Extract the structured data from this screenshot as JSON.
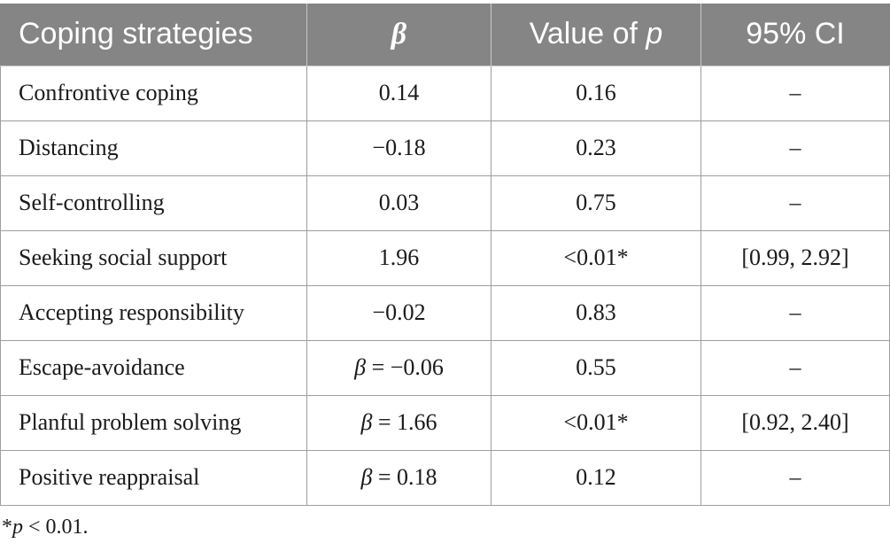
{
  "table": {
    "header": {
      "strategy": "Coping strategies",
      "beta": "β",
      "p_value_prefix": "Value of ",
      "p_value_symbol": "p",
      "ci": "95% CI"
    },
    "rows": [
      {
        "strategy": "Confrontive coping",
        "beta_prefix": "",
        "beta": "0.14",
        "p": "0.16",
        "ci": "–"
      },
      {
        "strategy": "Distancing",
        "beta_prefix": "",
        "beta": "−0.18",
        "p": "0.23",
        "ci": "–"
      },
      {
        "strategy": "Self-controlling",
        "beta_prefix": "",
        "beta": "0.03",
        "p": "0.75",
        "ci": "–"
      },
      {
        "strategy": "Seeking social support",
        "beta_prefix": "",
        "beta": "1.96",
        "p": "<0.01*",
        "ci": "[0.99, 2.92]"
      },
      {
        "strategy": "Accepting responsibility",
        "beta_prefix": "",
        "beta": "−0.02",
        "p": "0.83",
        "ci": "–"
      },
      {
        "strategy": "Escape-avoidance",
        "beta_prefix": "β",
        "beta": " = −0.06",
        "p": "0.55",
        "ci": "–"
      },
      {
        "strategy": "Planful problem solving",
        "beta_prefix": "β",
        "beta": " = 1.66",
        "p": "<0.01*",
        "ci": "[0.92, 2.40]"
      },
      {
        "strategy": "Positive reappraisal",
        "beta_prefix": "β",
        "beta": " = 0.18",
        "p": "0.12",
        "ci": "–"
      }
    ]
  },
  "footnote": {
    "star": "*",
    "symbol": "p",
    "text": " < 0.01."
  },
  "colors": {
    "header_bg": "#858585",
    "header_text": "#ffffff",
    "grid": "#9e9e9e"
  }
}
